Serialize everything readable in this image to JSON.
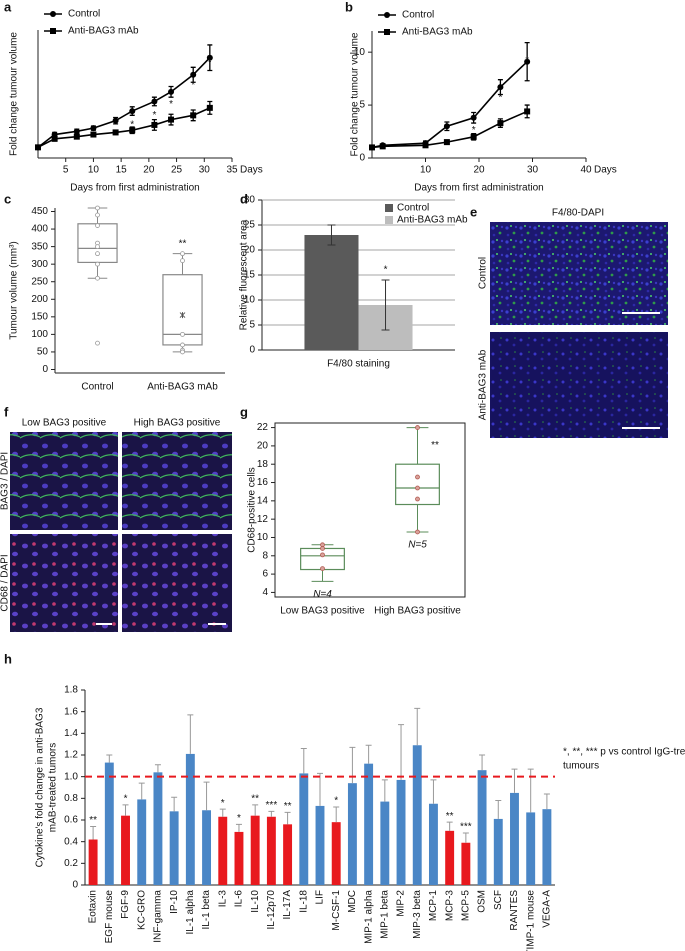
{
  "chart_data": [
    {
      "type": "line",
      "panel": "a",
      "x_label": "Days from first administration",
      "y_label": "Fold change tumour volume",
      "x_unit": "Days",
      "x": [
        0,
        3,
        7,
        10,
        14,
        17,
        21,
        24,
        28,
        31
      ],
      "xlim": [
        0,
        35
      ],
      "xticks": [
        5,
        10,
        15,
        20,
        25,
        30,
        35
      ],
      "ylim": [
        0,
        12
      ],
      "legend": "top left",
      "series": [
        {
          "name": "Control",
          "color": "#000000",
          "marker": "circle",
          "values": [
            1,
            2.2,
            2.5,
            2.8,
            3.5,
            4.4,
            5.3,
            6.2,
            7.8,
            9.4
          ],
          "errors": [
            0.1,
            0.2,
            0.2,
            0.2,
            0.3,
            0.4,
            0.4,
            0.5,
            0.7,
            1.2
          ]
        },
        {
          "name": "Anti-BAG3 mAb",
          "color": "#000000",
          "marker": "square",
          "values": [
            1,
            1.8,
            2.0,
            2.2,
            2.4,
            2.6,
            3.1,
            3.6,
            4.0,
            4.7
          ],
          "errors": [
            0.1,
            0.2,
            0.2,
            0.2,
            0.2,
            0.3,
            0.5,
            0.5,
            0.5,
            0.6
          ]
        }
      ],
      "significance": [
        null,
        null,
        null,
        null,
        null,
        "*",
        "*",
        "*",
        "*",
        "*"
      ]
    },
    {
      "type": "line",
      "panel": "b",
      "x_label": "Days from first administration",
      "y_label": "Fold change tumour volume",
      "x_unit": "Days",
      "x": [
        0,
        2,
        10,
        14,
        19,
        24,
        29
      ],
      "xlim": [
        0,
        40
      ],
      "xticks": [
        10,
        20,
        30,
        40
      ],
      "ylim": [
        0,
        12
      ],
      "yticks": [
        0,
        5,
        10
      ],
      "legend": "top left",
      "series": [
        {
          "name": "Control",
          "color": "#000000",
          "marker": "circle",
          "values": [
            1,
            1.2,
            1.4,
            3.0,
            3.8,
            6.7,
            9.1
          ],
          "errors": [
            0.1,
            0.1,
            0.2,
            0.4,
            0.5,
            0.7,
            1.8
          ]
        },
        {
          "name": "Anti-BAG3 mAb",
          "color": "#000000",
          "marker": "square",
          "values": [
            1,
            1.1,
            1.2,
            1.5,
            2.0,
            3.3,
            4.4
          ],
          "errors": [
            0.1,
            0.1,
            0.1,
            0.2,
            0.3,
            0.4,
            0.6
          ]
        }
      ],
      "significance": [
        null,
        null,
        null,
        null,
        "*",
        "*",
        "*"
      ]
    },
    {
      "type": "box",
      "panel": "c",
      "y_label": "Tumour volume (mm³)",
      "categories": [
        "Control",
        "Anti-BAG3 mAb"
      ],
      "color": "#888888",
      "ylim": [
        -10,
        460
      ],
      "yticks": [
        0,
        50,
        100,
        150,
        200,
        250,
        300,
        350,
        400,
        450
      ],
      "boxes": [
        {
          "min": 260,
          "q1": 305,
          "median": 345,
          "q3": 415,
          "max": 460,
          "points": [
            460,
            440,
            410,
            360,
            350,
            330,
            300,
            260,
            75
          ]
        },
        {
          "min": 50,
          "q1": 70,
          "median": 100,
          "q3": 270,
          "max": 330,
          "mean": 155,
          "points": [
            330,
            310,
            100,
            70,
            55,
            50
          ]
        }
      ],
      "significance": [
        null,
        "**"
      ]
    },
    {
      "type": "bar",
      "panel": "d",
      "y_label": "Relative fluorescent area",
      "categories": [
        "F4/80 staining"
      ],
      "ylim": [
        0,
        30
      ],
      "yticks": [
        0,
        5,
        10,
        15,
        20,
        25,
        30
      ],
      "grid": true,
      "legend": "top right",
      "series": [
        {
          "name": "Control",
          "color": "#5a5a5a",
          "values": [
            23
          ],
          "errors": [
            2
          ]
        },
        {
          "name": "Anti-BAG3 mAb",
          "color": "#bdbdbd",
          "values": [
            9
          ],
          "errors": [
            5
          ],
          "significance": [
            "*"
          ]
        }
      ]
    },
    {
      "type": "box",
      "panel": "g",
      "y_label": "CD68-positive cells",
      "categories": [
        "Low BAG3 positive",
        "High BAG3 positive"
      ],
      "color": "#5b8c5a",
      "frame": true,
      "ylim": [
        3.5,
        22.5
      ],
      "yticks": [
        4,
        6,
        8,
        10,
        12,
        14,
        16,
        18,
        20,
        22
      ],
      "n_labels": [
        "N=4",
        "N=5"
      ],
      "boxes": [
        {
          "min": 5.2,
          "q1": 6.5,
          "median": 8,
          "q3": 8.8,
          "max": 9.2,
          "points": [
            9.2,
            8.8,
            8.1,
            6.6
          ]
        },
        {
          "min": 10.6,
          "q1": 13.6,
          "median": 15.4,
          "q3": 18,
          "max": 22,
          "points": [
            22,
            16.6,
            15.4,
            14.2,
            10.6
          ]
        }
      ],
      "significance": [
        null,
        "**"
      ]
    },
    {
      "type": "cytokine",
      "panel": "h",
      "y_label": [
        "Cytokine's fold change in anti-BAG3",
        "mAB-treated tumors"
      ],
      "note": [
        "*, **, *** p vs control IgG-treated",
        "tumours"
      ],
      "categories": [
        "Eotaxin",
        "EGF mouse",
        "FGF-9",
        "KC-GRO",
        "INF-gamma",
        "IP-10",
        "IL-1 alpha",
        "IL-1 beta",
        "IL-3",
        "IL-6",
        "IL-10",
        "IL-12p70",
        "IL-17A",
        "IL-18",
        "LIF",
        "M-CSF-1",
        "MDC",
        "MIP-1 alpha",
        "MIP-1 beta",
        "MIP-2",
        "MIP-3 beta",
        "MCP-1",
        "MCP-3",
        "MCP-5",
        "OSM",
        "SCF",
        "RANTES",
        "TIMP-1 mouse",
        "VEGA-A"
      ],
      "values": [
        0.42,
        1.13,
        0.64,
        0.79,
        1.04,
        0.68,
        1.21,
        0.69,
        0.63,
        0.49,
        0.64,
        0.63,
        0.56,
        1.03,
        0.73,
        0.58,
        0.94,
        1.12,
        0.77,
        0.97,
        1.29,
        0.75,
        0.5,
        0.39,
        1.06,
        0.61,
        0.85,
        0.67,
        0.7
      ],
      "errors": [
        0.12,
        0.07,
        0.1,
        0.15,
        0.07,
        0.13,
        0.36,
        0.26,
        0.07,
        0.07,
        0.1,
        0.05,
        0.11,
        0.23,
        0.3,
        0.14,
        0.33,
        0.17,
        0.2,
        0.51,
        0.34,
        0.22,
        0.08,
        0.09,
        0.14,
        0.17,
        0.22,
        0.4,
        0.14
      ],
      "colors": [
        "#e8191e",
        "#4a86c6",
        "#e8191e",
        "#4a86c6",
        "#4a86c6",
        "#4a86c6",
        "#4a86c6",
        "#4a86c6",
        "#e8191e",
        "#e8191e",
        "#e8191e",
        "#e8191e",
        "#e8191e",
        "#4a86c6",
        "#4a86c6",
        "#e8191e",
        "#4a86c6",
        "#4a86c6",
        "#4a86c6",
        "#4a86c6",
        "#4a86c6",
        "#4a86c6",
        "#e8191e",
        "#e8191e",
        "#4a86c6",
        "#4a86c6",
        "#4a86c6",
        "#4a86c6",
        "#4a86c6"
      ],
      "significance": [
        "**",
        null,
        "*",
        null,
        null,
        null,
        null,
        null,
        "*",
        "*",
        "**",
        "***",
        "**",
        null,
        null,
        "*",
        null,
        null,
        null,
        null,
        null,
        null,
        "**",
        "***",
        null,
        null,
        null,
        null,
        null
      ],
      "error_direction": "up",
      "reference_line": {
        "value": 1,
        "color": "#e8191e"
      },
      "ylim": [
        0,
        1.8
      ],
      "yticks": [
        0,
        0.2,
        0.4,
        0.6,
        0.8,
        {
          "value": 1,
          "label": "1.0"
        },
        1.2,
        1.4,
        1.6,
        1.8
      ]
    }
  ],
  "images": {
    "e": {
      "panel": "e",
      "title": "F4/80-DAPI",
      "rows": [
        "Control",
        "Anti-BAG3 mAb"
      ]
    },
    "f": {
      "panel": "f",
      "columns": [
        "Low BAG3 positive",
        "High BAG3 positive"
      ],
      "rows": [
        "BAG3 / DAPI",
        "CD68 / DAPI"
      ]
    }
  }
}
